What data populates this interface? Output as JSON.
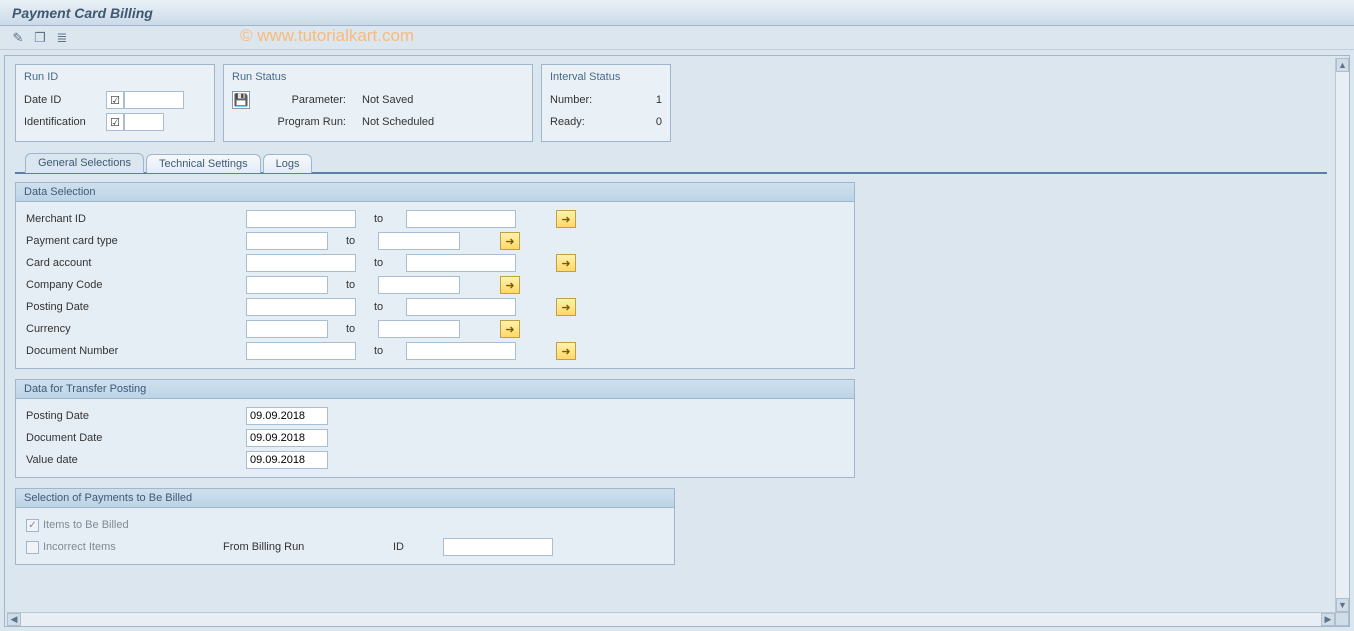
{
  "colors": {
    "bg": "#dbe6ee",
    "panel_border": "#9fb6cc",
    "title_text": "#3f5870",
    "tab_line": "#5c7fa5",
    "more_btn_bg_top": "#fff2b0",
    "more_btn_bg_bottom": "#ffd968",
    "more_btn_border": "#c0a040",
    "disabled_text": "#808a94"
  },
  "watermark": "© www.tutorialkart.com",
  "title": "Payment Card Billing",
  "panels": {
    "run_id": {
      "title": "Run ID",
      "rows": {
        "date_id": {
          "label": "Date ID",
          "value": ""
        },
        "identification": {
          "label": "Identification",
          "value": ""
        }
      }
    },
    "run_status": {
      "title": "Run Status",
      "rows": {
        "parameter": {
          "label": "Parameter:",
          "value": "Not Saved"
        },
        "program_run": {
          "label": "Program Run:",
          "value": "Not Scheduled"
        }
      }
    },
    "interval_status": {
      "title": "Interval Status",
      "rows": {
        "number": {
          "label": "Number:",
          "value": "1"
        },
        "ready": {
          "label": "Ready:",
          "value": "0"
        }
      }
    }
  },
  "tabs": {
    "general": "General Selections",
    "technical": "Technical Settings",
    "logs": "Logs"
  },
  "groups": {
    "data_selection": {
      "title": "Data Selection",
      "to_label": "to",
      "rows": [
        {
          "label": "Merchant ID",
          "from": "",
          "to": "",
          "wide": true
        },
        {
          "label": "Payment card type",
          "from": "",
          "to": "",
          "wide": false
        },
        {
          "label": "Card account",
          "from": "",
          "to": "",
          "wide": true
        },
        {
          "label": "Company Code",
          "from": "",
          "to": "",
          "wide": false
        },
        {
          "label": "Posting Date",
          "from": "",
          "to": "",
          "wide": true
        },
        {
          "label": "Currency",
          "from": "",
          "to": "",
          "wide": false
        },
        {
          "label": "Document Number",
          "from": "",
          "to": "",
          "wide": true
        }
      ]
    },
    "transfer_posting": {
      "title": "Data for Transfer Posting",
      "rows": [
        {
          "label": "Posting Date",
          "value": "09.09.2018"
        },
        {
          "label": "Document Date",
          "value": "09.09.2018"
        },
        {
          "label": "Value date",
          "value": "09.09.2018"
        }
      ]
    },
    "selection_payments": {
      "title": "Selection of Payments to Be Billed",
      "items_label": "Items to Be Billed",
      "items_checked": true,
      "incorrect_label": "Incorrect Items",
      "incorrect_checked": false,
      "from_run_label": "From Billing Run",
      "id_label": "ID",
      "id_value": ""
    }
  }
}
